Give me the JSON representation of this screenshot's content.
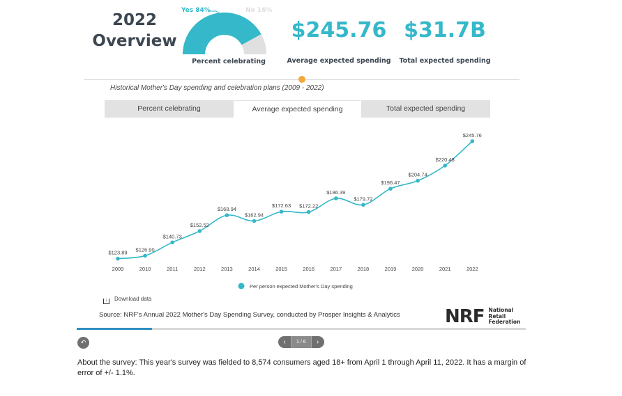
{
  "overview": {
    "line1": "2022",
    "line2": "Overview"
  },
  "gauge": {
    "yes_label": "Yes 84%",
    "no_label": "No 16%",
    "yes_fraction": 0.84,
    "label": "Percent celebrating",
    "yes_color": "#35b8c9",
    "no_color": "#e0e0e0"
  },
  "stats": [
    {
      "value": "$245.76",
      "label": "Average expected spending"
    },
    {
      "value": "$31.7B",
      "label": "Total expected spending"
    }
  ],
  "subtitle": "Historical Mother's Day spending and celebration plans (2009 - 2022)",
  "tabs": [
    {
      "label": "Percent celebrating",
      "active": false
    },
    {
      "label": "Average expected spending",
      "active": true
    },
    {
      "label": "Total expected spending",
      "active": false
    }
  ],
  "chart_data": {
    "type": "line",
    "x": [
      "2009",
      "2010",
      "2011",
      "2012",
      "2013",
      "2014",
      "2015",
      "2016",
      "2017",
      "2018",
      "2019",
      "2020",
      "2021",
      "2022"
    ],
    "series": [
      {
        "name": "Per person expected Mother's Day spending",
        "values": [
          123.89,
          126.9,
          140.73,
          152.52,
          168.94,
          162.94,
          172.63,
          172.22,
          186.39,
          179.72,
          196.47,
          204.74,
          220.48,
          245.76
        ],
        "labels": [
          "$123.89",
          "$126.90",
          "$140.73",
          "$152.52",
          "$168.94",
          "$162.94",
          "$172.63",
          "$172.22",
          "$186.39",
          "$179.72",
          "$196.47",
          "$204.74",
          "$220.48",
          "$245.76"
        ],
        "color": "#35b8c9"
      }
    ],
    "ylim": [
      120,
      250
    ],
    "grid": false,
    "legend": "bottom-center"
  },
  "download_label": "Download data",
  "source": "Source: NRF's Annual 2022 Mother's Day Spending Survey, conducted by Prosper Insights & Analytics",
  "logo": {
    "mark": "NRF",
    "line1": "National",
    "line2": "Retail",
    "line3": "Federation"
  },
  "carousel": {
    "counter": "1 / 6",
    "progress": 0.167
  },
  "about": "About the survey: This year's survey was fielded to 8,574 consumers aged 18+ from April 1 through April 11, 2022. It has a margin of error of +/- 1.1%.",
  "colors": {
    "accent": "#35b8c9",
    "heading": "#3d4752",
    "marker": "#f2a93b"
  }
}
